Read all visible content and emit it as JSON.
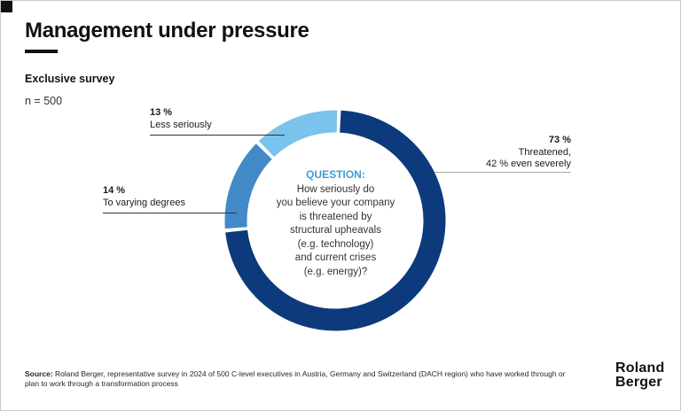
{
  "page": {
    "title": "Management under pressure",
    "subtitle": "Exclusive survey",
    "sample_size": "n = 500"
  },
  "chart_data": {
    "type": "pie",
    "subtype": "donut",
    "title": "Management under pressure",
    "start_angle": 2,
    "gap_degrees": 1,
    "center_question": {
      "heading": "QUESTION:",
      "lines": [
        "How seriously do",
        "you believe your company",
        "is threatened by",
        "structural upheavals",
        "(e.g. technology)",
        "and current crises",
        "(e.g. energy)?"
      ]
    },
    "segments": [
      {
        "id": "threatened",
        "value": 73,
        "color": "#0c3a7c",
        "annotation": {
          "pct": "73 %",
          "lines": [
            "Threatened,",
            "42 % even severely"
          ]
        }
      },
      {
        "id": "varying-degrees",
        "value": 14,
        "color": "#4289c8",
        "annotation": {
          "pct": "14 %",
          "label": "To varying degrees"
        }
      },
      {
        "id": "less-seriously",
        "value": 13,
        "color": "#79c3ec",
        "annotation": {
          "pct": "13 %",
          "label": "Less seriously"
        }
      }
    ],
    "colors": {
      "navy": "#0c3a7c",
      "medium_blue": "#4289c8",
      "light_blue": "#79c3ec",
      "question_blue": "#3f9cd9"
    }
  },
  "footer": {
    "source_label": "Source:",
    "source_line1": "Roland Berger, representative survey in 2024 of 500 C-level executives in Austria, Germany and Switzerland (DACH region) who have worked through or",
    "source_line2": "plan to work through a transformation process",
    "logo_line1": "Roland",
    "logo_line2": "Berger"
  }
}
